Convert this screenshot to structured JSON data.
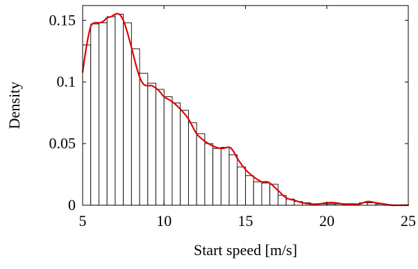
{
  "chart_data": {
    "type": "bar",
    "title": "",
    "xlabel": "Start speed [m/s]",
    "ylabel": "Density",
    "xlim": [
      5,
      25
    ],
    "ylim": [
      0,
      0.162
    ],
    "xticks": [
      5,
      10,
      15,
      20,
      25
    ],
    "xtick_labels": [
      "5",
      "10",
      "15",
      "20",
      "25"
    ],
    "yticks": [
      0,
      0.05,
      0.1,
      0.15
    ],
    "ytick_labels": [
      "0",
      "0.05",
      "0.1",
      "0.15"
    ],
    "grid": false,
    "legend": null,
    "histogram": {
      "bin_width": 0.5,
      "bin_edges_start": [
        5.0,
        5.5,
        6.0,
        6.5,
        7.0,
        7.5,
        8.0,
        8.5,
        9.0,
        9.5,
        10.0,
        10.5,
        11.0,
        11.5,
        12.0,
        12.5,
        13.0,
        13.5,
        14.0,
        14.5,
        15.0,
        15.5,
        16.0,
        16.5,
        17.0,
        17.5,
        18.0,
        18.5,
        19.0,
        19.5,
        20.0,
        20.5,
        21.0,
        21.5,
        22.0,
        22.5,
        23.0
      ],
      "densities": [
        0.13,
        0.147,
        0.148,
        0.153,
        0.155,
        0.148,
        0.127,
        0.107,
        0.099,
        0.094,
        0.088,
        0.083,
        0.077,
        0.067,
        0.058,
        0.05,
        0.046,
        0.047,
        0.041,
        0.031,
        0.024,
        0.019,
        0.018,
        0.017,
        0.008,
        0.005,
        0.003,
        0.002,
        0.001,
        0.001,
        0.001,
        0.001,
        0.001,
        0.001,
        0.002,
        0.002,
        0.001
      ],
      "fill": "#ffffff",
      "edge_color": "#000000"
    },
    "density_curve": {
      "color": "#e00000",
      "x": [
        5.0,
        5.25,
        5.5,
        5.75,
        6.0,
        6.25,
        6.5,
        6.75,
        7.0,
        7.25,
        7.5,
        7.75,
        8.0,
        8.25,
        8.5,
        8.75,
        9.0,
        9.25,
        9.5,
        9.75,
        10.0,
        10.5,
        11.0,
        11.5,
        12.0,
        12.5,
        13.0,
        13.5,
        14.0,
        14.25,
        14.5,
        15.0,
        15.5,
        16.0,
        16.25,
        16.5,
        17.0,
        17.5,
        18.0,
        18.5,
        19.0,
        19.5,
        20.0,
        20.5,
        21.0,
        21.5,
        22.0,
        22.5,
        23.0,
        23.5,
        24.0,
        24.5,
        25.0
      ],
      "y": [
        0.108,
        0.13,
        0.145,
        0.148,
        0.148,
        0.149,
        0.152,
        0.153,
        0.155,
        0.155,
        0.15,
        0.14,
        0.128,
        0.115,
        0.104,
        0.098,
        0.097,
        0.097,
        0.095,
        0.092,
        0.088,
        0.084,
        0.078,
        0.07,
        0.058,
        0.052,
        0.048,
        0.046,
        0.047,
        0.044,
        0.038,
        0.029,
        0.023,
        0.019,
        0.019,
        0.018,
        0.012,
        0.006,
        0.004,
        0.002,
        0.001,
        0.001,
        0.002,
        0.002,
        0.001,
        0.001,
        0.001,
        0.003,
        0.002,
        0.001,
        0.0,
        0.0,
        0.0
      ]
    }
  }
}
